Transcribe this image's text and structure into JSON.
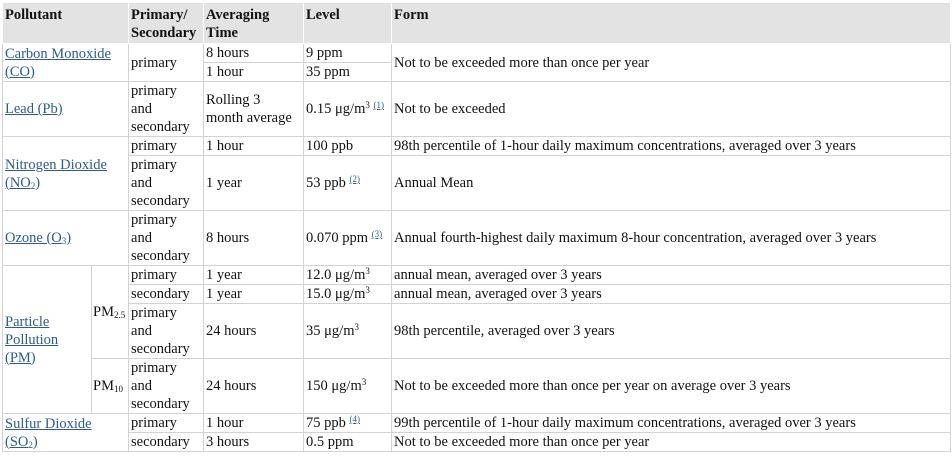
{
  "headers": {
    "pollutant": "Pollutant",
    "primary_secondary": "Primary/ Secondary",
    "averaging_time": "Averaging Time",
    "level": "Level",
    "form": "Form"
  },
  "co": {
    "name": "Carbon Monoxide (CO)",
    "type": "primary",
    "rows": [
      {
        "time": "8 hours",
        "level": "9 ppm"
      },
      {
        "time": "1 hour",
        "level": "35 ppm"
      }
    ],
    "form": "Not to be exceeded more than once per year"
  },
  "lead": {
    "name": "Lead (Pb)",
    "type": "primary and secondary",
    "time": "Rolling 3 month average",
    "level": "0.15 μg/m",
    "level_sup": "3",
    "footnote": "(1)",
    "form": "Not to be exceeded"
  },
  "no2": {
    "name_pre": "Nitrogen Dioxide (NO",
    "name_sub": "2",
    "name_post": ")",
    "r1": {
      "type": "primary",
      "time": "1 hour",
      "level": "100 ppb",
      "form": "98th percentile of 1-hour daily maximum concentrations, averaged over 3 years"
    },
    "r2": {
      "type": "primary and secondary",
      "time": "1 year",
      "level": "53 ppb",
      "footnote": "(2)",
      "form": "Annual Mean"
    }
  },
  "ozone": {
    "name_pre": "Ozone (O",
    "name_sub": "3",
    "name_post": ")",
    "type": "primary and secondary",
    "time": "8 hours",
    "level": "0.070 ppm",
    "footnote": "(3)",
    "form": "Annual fourth-highest daily maximum 8-hour concentration, averaged over 3 years"
  },
  "pm": {
    "name": "Particle Pollution (PM)",
    "pm25_pre": "PM",
    "pm25_sub": "2.5",
    "pm10_pre": "PM",
    "pm10_sub": "10",
    "r1": {
      "type": "primary",
      "time": "1 year",
      "level": "12.0 μg/m",
      "level_sup": "3",
      "form": "annual mean, averaged over 3 years"
    },
    "r2": {
      "type": "secondary",
      "time": "1 year",
      "level": "15.0 μg/m",
      "level_sup": "3",
      "form": "annual mean, averaged over 3 years"
    },
    "r3": {
      "type": "primary and secondary",
      "time": "24 hours",
      "level": "35 μg/m",
      "level_sup": "3",
      "form": "98th percentile, averaged over 3 years"
    },
    "r4": {
      "type": "primary and secondary",
      "time": "24 hours",
      "level": "150 μg/m",
      "level_sup": "3",
      "form": "Not to be exceeded more than once per year on average over 3 years"
    }
  },
  "so2": {
    "name_pre": "Sulfur Dioxide (SO",
    "name_sub": "2",
    "name_post": ")",
    "r1": {
      "type": "primary",
      "time": "1 hour",
      "level": "75 ppb",
      "footnote": "(4)",
      "form": "99th percentile of 1-hour daily maximum concentrations, averaged over 3 years"
    },
    "r2": {
      "type": "secondary",
      "time": "3 hours",
      "level": "0.5 ppm",
      "form": "Not to be exceeded more than once per year"
    }
  }
}
